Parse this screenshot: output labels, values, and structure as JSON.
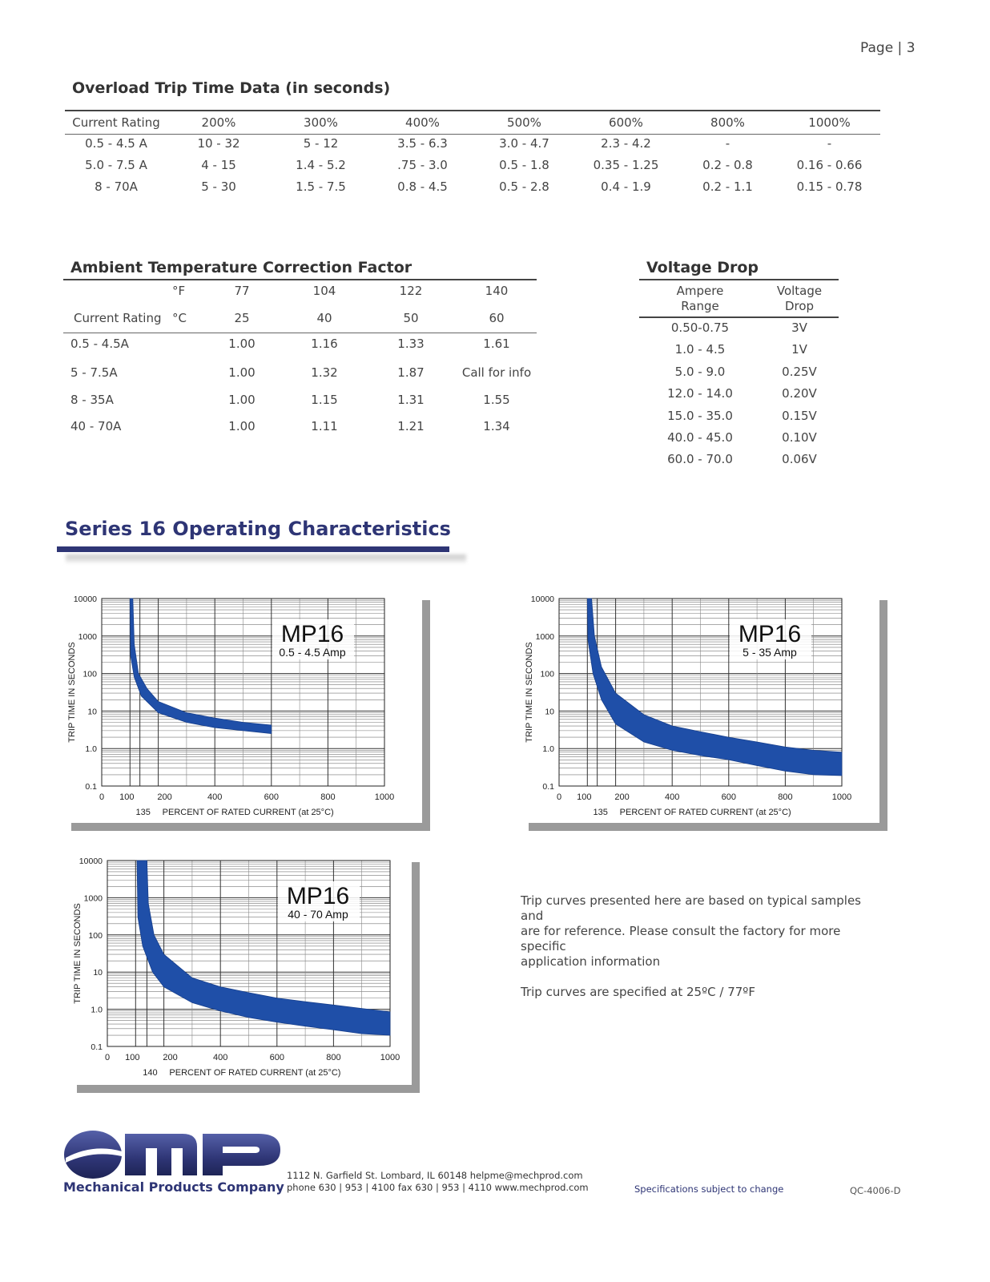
{
  "page_number": "Page | 3",
  "overload": {
    "title": "Overload Trip Time Data (in seconds)",
    "headers": [
      "Current Rating",
      "200%",
      "300%",
      "400%",
      "500%",
      "600%",
      "800%",
      "1000%"
    ],
    "rows": [
      [
        "0.5 - 4.5 A",
        "10 - 32",
        "5 - 12",
        "3.5 - 6.3",
        "3.0 - 4.7",
        "2.3 - 4.2",
        "-",
        "-"
      ],
      [
        "5.0 - 7.5 A",
        "4 - 15",
        "1.4 - 5.2",
        ".75 - 3.0",
        "0.5 - 1.8",
        "0.35 - 1.25",
        "0.2 - 0.8",
        "0.16 - 0.66"
      ],
      [
        "8 - 70A",
        "5 - 30",
        "1.5 - 7.5",
        "0.8 - 4.5",
        "0.5 - 2.8",
        "0.4 - 1.9",
        "0.2 - 1.1",
        "0.15 - 0.78"
      ]
    ]
  },
  "ambient": {
    "title": "Ambient Temperature Correction Factor",
    "unit_f": "°F",
    "unit_c": "°C",
    "f_values": [
      "77",
      "104",
      "122",
      "140"
    ],
    "c_values": [
      "25",
      "40",
      "50",
      "60"
    ],
    "label": "Current Rating",
    "rows": [
      [
        "0.5 - 4.5A",
        "1.00",
        "1.16",
        "1.33",
        "1.61"
      ],
      [
        "5 - 7.5A",
        "1.00",
        "1.32",
        "1.87",
        "Call for info"
      ],
      [
        "8 - 35A",
        "1.00",
        "1.15",
        "1.31",
        "1.55"
      ],
      [
        "40 - 70A",
        "1.00",
        "1.11",
        "1.21",
        "1.34"
      ]
    ]
  },
  "voltage": {
    "title": "Voltage Drop",
    "h1_line1": "Ampere",
    "h1_line2": "Range",
    "h2_line1": "Voltage",
    "h2_line2": "Drop",
    "rows": [
      [
        "0.50-0.75",
        "3V"
      ],
      [
        "1.0 - 4.5",
        "1V"
      ],
      [
        "5.0 - 9.0",
        "0.25V"
      ],
      [
        "12.0 - 14.0",
        "0.20V"
      ],
      [
        "15.0 - 35.0",
        "0.15V"
      ],
      [
        "40.0 - 45.0",
        "0.10V"
      ],
      [
        "60.0 - 70.0",
        "0.06V"
      ]
    ]
  },
  "series_title": "Series 16 Operating Characteristics",
  "chart_data": [
    {
      "type": "area",
      "title": "MP16",
      "subtitle": "0.5 - 4.5 Amp",
      "ylabel": "TRIP TIME IN SECONDS",
      "xlabel": "PERCENT OF RATED CURRENT (at 25°C)",
      "x_extra_tick": "135",
      "x_ticks": [
        "0",
        "100",
        "200",
        "400",
        "600",
        "800",
        "1000"
      ],
      "y_ticks": [
        "10000",
        "1000",
        "100",
        "10",
        "1.0",
        "0.1"
      ],
      "xlim": [
        0,
        1000
      ],
      "ylim": [
        0.1,
        10000
      ],
      "yscale": "log",
      "upper": [
        [
          110,
          10000
        ],
        [
          115,
          600
        ],
        [
          130,
          100
        ],
        [
          160,
          40
        ],
        [
          200,
          18
        ],
        [
          300,
          9
        ],
        [
          400,
          6.5
        ],
        [
          500,
          5
        ],
        [
          600,
          4.2
        ]
      ],
      "lower": [
        [
          100,
          10000
        ],
        [
          102,
          300
        ],
        [
          115,
          80
        ],
        [
          140,
          25
        ],
        [
          200,
          9
        ],
        [
          300,
          5
        ],
        [
          400,
          3.6
        ],
        [
          500,
          3
        ],
        [
          600,
          2.5
        ]
      ],
      "grid": true
    },
    {
      "type": "area",
      "title": "MP16",
      "subtitle": "5 - 35 Amp",
      "ylabel": "TRIP TIME IN SECONDS",
      "xlabel": "PERCENT OF RATED CURRENT (at 25°C)",
      "x_extra_tick": "135",
      "x_ticks": [
        "0",
        "100",
        "200",
        "400",
        "600",
        "800",
        "1000"
      ],
      "y_ticks": [
        "10000",
        "1000",
        "100",
        "10",
        "1.0",
        "0.1"
      ],
      "xlim": [
        0,
        1000
      ],
      "ylim": [
        0.1,
        10000
      ],
      "yscale": "log",
      "upper": [
        [
          115,
          10000
        ],
        [
          125,
          1000
        ],
        [
          150,
          150
        ],
        [
          200,
          30
        ],
        [
          300,
          8
        ],
        [
          400,
          4
        ],
        [
          500,
          2.8
        ],
        [
          600,
          2
        ],
        [
          700,
          1.5
        ],
        [
          800,
          1.1
        ],
        [
          900,
          0.9
        ],
        [
          1000,
          0.8
        ]
      ],
      "lower": [
        [
          100,
          10000
        ],
        [
          102,
          800
        ],
        [
          120,
          100
        ],
        [
          150,
          20
        ],
        [
          200,
          4.5
        ],
        [
          300,
          1.5
        ],
        [
          400,
          0.9
        ],
        [
          500,
          0.65
        ],
        [
          600,
          0.5
        ],
        [
          700,
          0.35
        ],
        [
          800,
          0.25
        ],
        [
          900,
          0.2
        ],
        [
          1000,
          0.19
        ]
      ],
      "grid": true
    },
    {
      "type": "area",
      "title": "MP16",
      "subtitle": "40 - 70 Amp",
      "ylabel": "TRIP TIME IN SECONDS",
      "xlabel": "PERCENT OF RATED CURRENT (at 25°C)",
      "x_extra_tick": "140",
      "x_ticks": [
        "0",
        "100",
        "200",
        "400",
        "600",
        "800",
        "1000"
      ],
      "y_ticks": [
        "10000",
        "1000",
        "100",
        "10",
        "1.0",
        "0.1"
      ],
      "xlim": [
        0,
        1000
      ],
      "ylim": [
        0.1,
        10000
      ],
      "yscale": "log",
      "upper": [
        [
          140,
          10000
        ],
        [
          145,
          700
        ],
        [
          165,
          100
        ],
        [
          200,
          30
        ],
        [
          300,
          7
        ],
        [
          400,
          4
        ],
        [
          500,
          2.8
        ],
        [
          600,
          2
        ],
        [
          700,
          1.6
        ],
        [
          800,
          1.3
        ],
        [
          900,
          1.05
        ],
        [
          1000,
          0.85
        ]
      ],
      "lower": [
        [
          105,
          10000
        ],
        [
          108,
          300
        ],
        [
          125,
          50
        ],
        [
          160,
          10
        ],
        [
          200,
          4
        ],
        [
          300,
          1.5
        ],
        [
          400,
          0.9
        ],
        [
          500,
          0.6
        ],
        [
          600,
          0.45
        ],
        [
          700,
          0.35
        ],
        [
          800,
          0.28
        ],
        [
          900,
          0.22
        ],
        [
          1000,
          0.2
        ]
      ],
      "grid": true
    }
  ],
  "notes": {
    "line1": "Trip curves presented here are based on typical samples and",
    "line2": "are for reference. Please consult the factory for more specific",
    "line3": "application information",
    "line4": "Trip curves are specified at 25ºC / 77ºF"
  },
  "footer": {
    "logo_text": "mp",
    "company": "Mechanical Products Company",
    "address": "1112 N. Garfield St.  Lombard,  IL  60148  helpme@mechprod.com",
    "phone": "phone 630 | 953 | 4100    fax 630 | 953 | 4110  www.mechprod.com",
    "disclaimer": "Specifications subject to change",
    "doc_code": "QC-4006-D"
  },
  "colors": {
    "brand": "#2e3575",
    "curve": "#1f4fa8"
  }
}
